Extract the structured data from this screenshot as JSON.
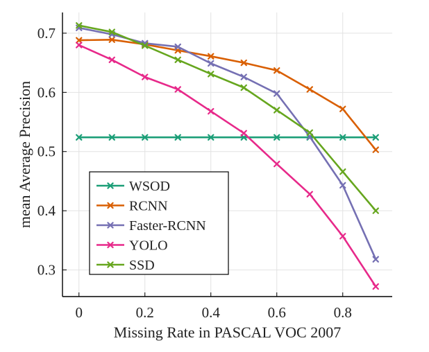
{
  "chart_data": {
    "type": "line",
    "title": "",
    "xlabel": "Missing Rate in PASCAL VOC 2007",
    "ylabel": "mean Average Precision",
    "x": [
      0,
      0.1,
      0.2,
      0.3,
      0.4,
      0.5,
      0.6,
      0.7,
      0.8,
      0.9
    ],
    "xlim": [
      -0.05,
      0.95
    ],
    "ylim": [
      0.255,
      0.735
    ],
    "xticks": [
      0,
      0.2,
      0.4,
      0.6,
      0.8
    ],
    "xtick_labels": [
      "0",
      "0.2",
      "0.4",
      "0.6",
      "0.8"
    ],
    "yticks": [
      0.3,
      0.4,
      0.5,
      0.6,
      0.7
    ],
    "ytick_labels": [
      "0.3",
      "0.4",
      "0.5",
      "0.6",
      "0.7"
    ],
    "grid": true,
    "legend_position": "lower-left",
    "series": [
      {
        "name": "WSOD",
        "color": "#1b9e77",
        "values": [
          0.524,
          0.524,
          0.524,
          0.524,
          0.524,
          0.524,
          0.524,
          0.524,
          0.524,
          0.524
        ]
      },
      {
        "name": "RCNN",
        "color": "#d95f02",
        "values": [
          0.688,
          0.689,
          0.681,
          0.671,
          0.661,
          0.65,
          0.637,
          0.605,
          0.572,
          0.503
        ]
      },
      {
        "name": "Faster-RCNN",
        "color": "#7570b3",
        "values": [
          0.709,
          0.698,
          0.683,
          0.677,
          0.649,
          0.626,
          0.598,
          0.525,
          0.443,
          0.318
        ]
      },
      {
        "name": "YOLO",
        "color": "#e7298a",
        "values": [
          0.68,
          0.655,
          0.626,
          0.605,
          0.568,
          0.531,
          0.479,
          0.428,
          0.357,
          0.272
        ]
      },
      {
        "name": "SSD",
        "color": "#66a61e",
        "values": [
          0.713,
          0.702,
          0.679,
          0.655,
          0.631,
          0.608,
          0.57,
          0.532,
          0.466,
          0.4
        ]
      }
    ]
  }
}
